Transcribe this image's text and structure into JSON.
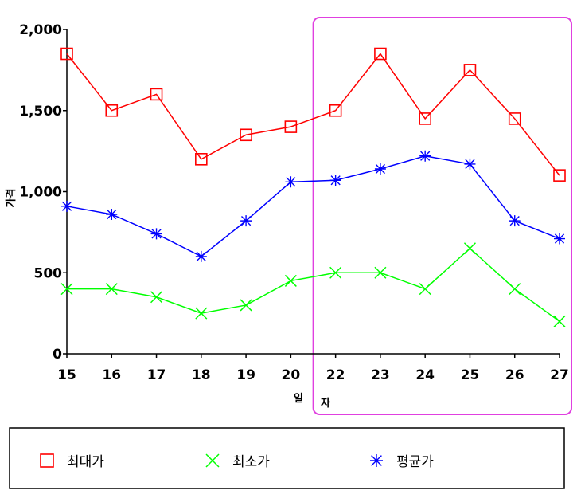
{
  "chart_data": {
    "type": "line",
    "ylabel": "가격",
    "xlabel_parts": [
      "일",
      "자"
    ],
    "categories": [
      "15",
      "16",
      "17",
      "18",
      "19",
      "20",
      "22",
      "23",
      "24",
      "25",
      "26",
      "27"
    ],
    "yticks": [
      "0",
      "500",
      "1,000",
      "1,500",
      "2,000"
    ],
    "ylim": [
      0,
      2000
    ],
    "grid": false,
    "legend_position": "bottom",
    "highlight_range": [
      "22",
      "27"
    ],
    "series": [
      {
        "name": "최대가",
        "color": "#ff0000",
        "marker": "square",
        "values": [
          1850,
          1500,
          1600,
          1200,
          1350,
          1400,
          1500,
          1850,
          1450,
          1750,
          1450,
          1100
        ]
      },
      {
        "name": "최소가",
        "color": "#00ff00",
        "marker": "x",
        "values": [
          400,
          400,
          350,
          250,
          300,
          450,
          500,
          500,
          400,
          650,
          400,
          200
        ]
      },
      {
        "name": "평균가",
        "color": "#0000ff",
        "marker": "asterisk",
        "values": [
          910,
          860,
          740,
          600,
          820,
          1060,
          1070,
          1140,
          1220,
          1170,
          820,
          710
        ]
      }
    ],
    "highlight_color": "#e040e0",
    "axis_color": "#000000"
  }
}
